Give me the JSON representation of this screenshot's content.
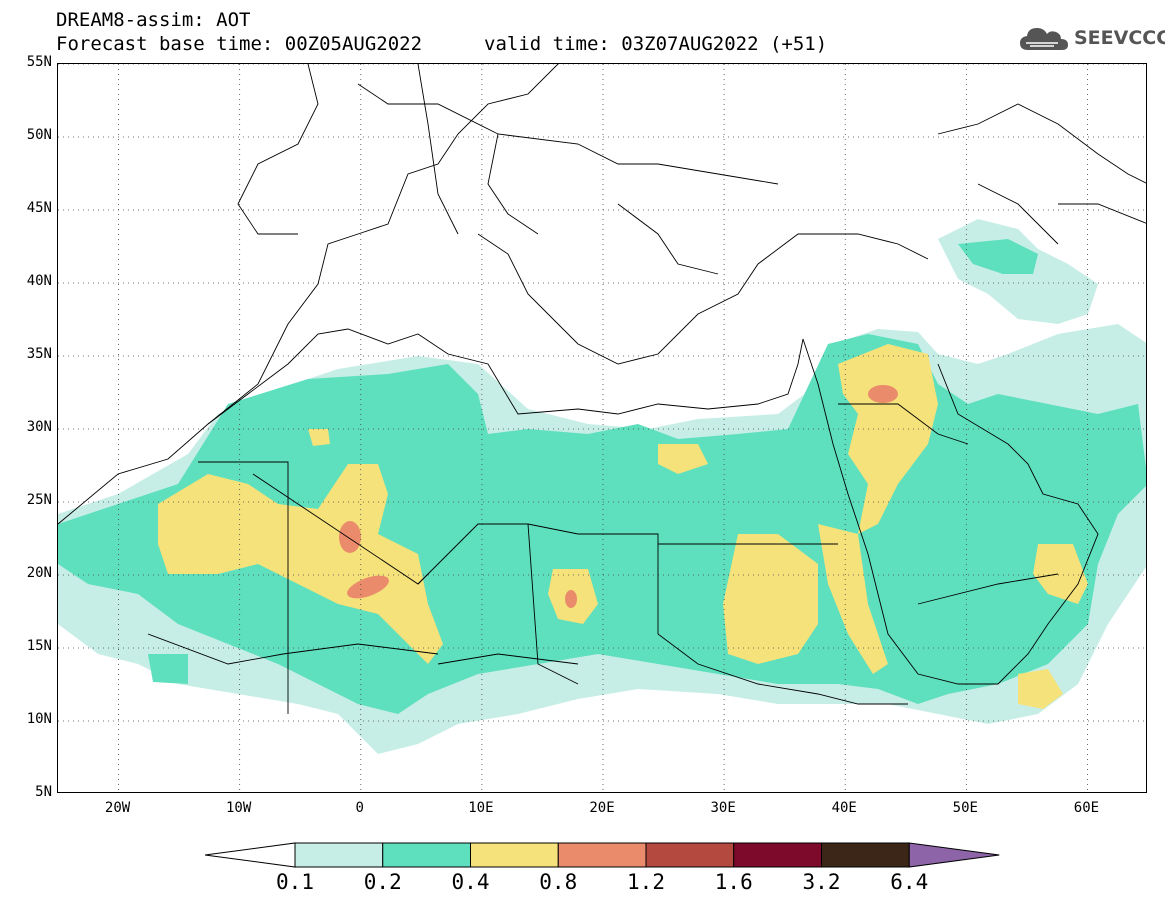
{
  "header": {
    "line1": "DREAM8-assim: AOT",
    "line2": "Forecast base time: 00Z05AUG2022",
    "valid": "valid time: 03Z07AUG2022 (+51)"
  },
  "logo": {
    "text": "SEEVCCC",
    "icon": "cloud-icon"
  },
  "map": {
    "lat_range": [
      5,
      55
    ],
    "lon_range": [
      -25,
      65
    ],
    "lat_ticks": [
      {
        "value": 55,
        "label": "55N"
      },
      {
        "value": 50,
        "label": "50N"
      },
      {
        "value": 45,
        "label": "45N"
      },
      {
        "value": 40,
        "label": "40N"
      },
      {
        "value": 35,
        "label": "35N"
      },
      {
        "value": 30,
        "label": "30N"
      },
      {
        "value": 25,
        "label": "25N"
      },
      {
        "value": 20,
        "label": "20N"
      },
      {
        "value": 15,
        "label": "15N"
      },
      {
        "value": 10,
        "label": "10N"
      },
      {
        "value": 5,
        "label": "5N"
      }
    ],
    "lon_ticks": [
      {
        "value": -20,
        "label": "20W"
      },
      {
        "value": -10,
        "label": "10W"
      },
      {
        "value": 0,
        "label": "0"
      },
      {
        "value": 10,
        "label": "10E"
      },
      {
        "value": 20,
        "label": "20E"
      },
      {
        "value": 30,
        "label": "30E"
      },
      {
        "value": 40,
        "label": "40E"
      },
      {
        "value": 50,
        "label": "50E"
      },
      {
        "value": 60,
        "label": "60E"
      }
    ],
    "grid": "dotted"
  },
  "colorbar": {
    "levels": [
      "0.1",
      "0.2",
      "0.4",
      "0.8",
      "1.2",
      "1.6",
      "3.2",
      "6.4"
    ],
    "colors": [
      "#ffffff",
      "#c6eee6",
      "#5edfbe",
      "#f6e27a",
      "#ea8c6c",
      "#b4493f",
      "#7d0a2a",
      "#3b2617",
      "#8e64a8"
    ]
  }
}
